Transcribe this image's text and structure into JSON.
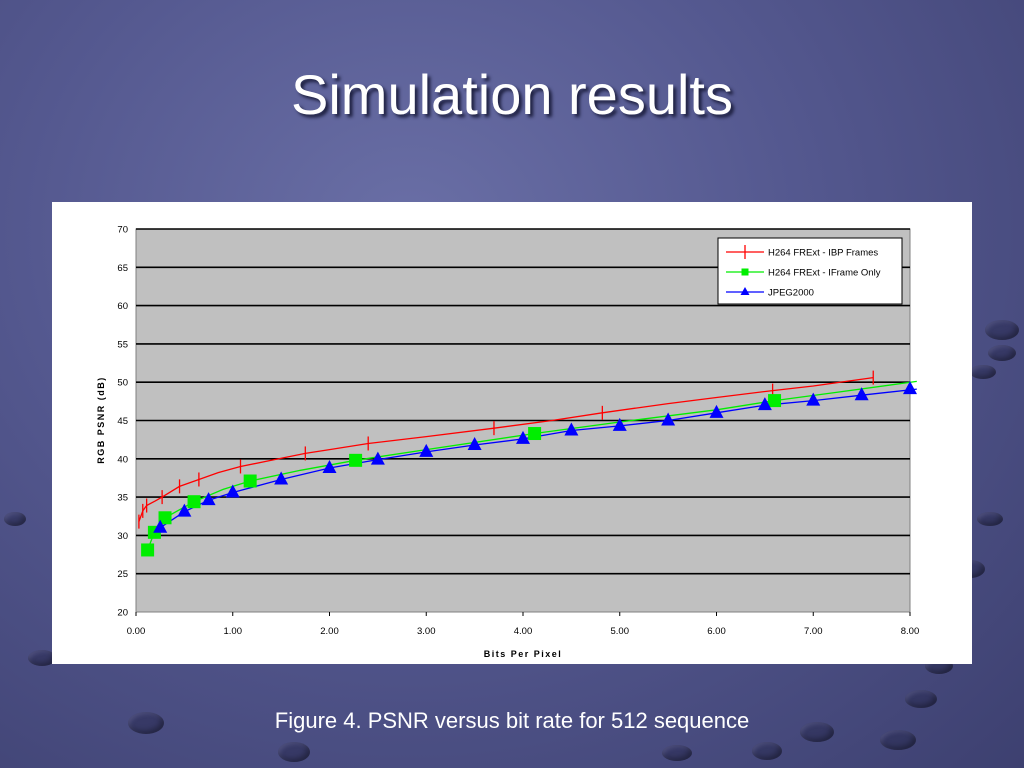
{
  "slide": {
    "title": "Simulation results",
    "caption": "Figure 4. PSNR versus bit rate for 512 sequence"
  },
  "chart_data": {
    "type": "line",
    "xlabel": "Bits Per Pixel",
    "ylabel": "RGB PSNR (dB)",
    "xlim": [
      0,
      8
    ],
    "ylim": [
      20,
      70
    ],
    "x_ticks": [
      "0.00",
      "1.00",
      "2.00",
      "3.00",
      "4.00",
      "5.00",
      "6.00",
      "7.00",
      "8.00"
    ],
    "y_ticks": [
      "20",
      "25",
      "30",
      "35",
      "40",
      "45",
      "50",
      "55",
      "60",
      "65",
      "70"
    ],
    "grid": "horizontal",
    "legend_position": "top-right",
    "plot_background": "#c0c0c0",
    "series": [
      {
        "name": "H264 FRExt - IBP Frames",
        "color": "#ff0000",
        "marker": "cross",
        "x": [
          0.03,
          0.07,
          0.11,
          0.27,
          0.45,
          0.65,
          1.08,
          1.75,
          2.4,
          3.7,
          4.82,
          6.58,
          7.62
        ],
        "y": [
          31.8,
          33.2,
          33.9,
          35.0,
          36.4,
          37.3,
          39.0,
          40.7,
          42.0,
          44.0,
          46.0,
          48.9,
          50.6
        ],
        "curve_x": [
          0.03,
          0.07,
          0.11,
          0.2,
          0.27,
          0.45,
          0.65,
          0.85,
          1.08,
          1.4,
          1.75,
          2.0,
          2.4,
          3.0,
          3.7,
          4.3,
          4.82,
          5.5,
          6.0,
          6.58,
          7.0,
          7.62
        ],
        "curve_y": [
          31.8,
          33.2,
          33.9,
          34.5,
          35.0,
          36.4,
          37.3,
          38.2,
          39.0,
          39.8,
          40.7,
          41.2,
          42.0,
          42.9,
          44.0,
          45.0,
          46.0,
          47.2,
          48.0,
          48.9,
          49.5,
          50.6
        ]
      },
      {
        "name": "H264 FRExt - IFrame Only",
        "color": "#00ee00",
        "marker": "square",
        "x": [
          0.12,
          0.19,
          0.3,
          0.6,
          1.18,
          2.27,
          4.12,
          6.6
        ],
        "y": [
          28.1,
          30.4,
          32.3,
          34.4,
          37.1,
          39.8,
          43.3,
          47.6
        ],
        "curve_x": [
          0.12,
          0.19,
          0.3,
          0.6,
          0.9,
          1.18,
          1.7,
          2.27,
          3.0,
          4.12,
          5.0,
          6.0,
          6.6,
          7.2,
          8.07
        ],
        "curve_y": [
          28.1,
          30.4,
          32.3,
          34.4,
          36.0,
          37.1,
          38.5,
          39.8,
          41.2,
          43.3,
          44.8,
          46.4,
          47.6,
          48.6,
          50.1
        ]
      },
      {
        "name": "JPEG2000",
        "color": "#0000ff",
        "marker": "triangle",
        "x": [
          0.25,
          0.5,
          0.75,
          1.0,
          1.5,
          2.0,
          2.5,
          3.0,
          3.5,
          4.0,
          4.5,
          5.0,
          5.5,
          6.0,
          6.5,
          7.0,
          7.5,
          8.0
        ],
        "y": [
          31.0,
          33.1,
          34.6,
          35.6,
          37.3,
          38.8,
          39.9,
          40.9,
          41.8,
          42.6,
          43.7,
          44.3,
          45.0,
          46.0,
          47.0,
          47.6,
          48.3,
          49.1
        ],
        "curve_x": [
          0.25,
          0.5,
          0.75,
          1.0,
          1.5,
          2.0,
          2.5,
          3.0,
          3.5,
          4.0,
          4.5,
          5.0,
          5.5,
          6.0,
          6.5,
          7.0,
          7.5,
          8.07
        ],
        "curve_y": [
          31.0,
          33.1,
          34.6,
          35.6,
          37.3,
          38.8,
          39.9,
          40.9,
          41.8,
          42.6,
          43.7,
          44.3,
          45.0,
          46.0,
          47.0,
          47.6,
          48.3,
          49.1
        ]
      }
    ]
  }
}
